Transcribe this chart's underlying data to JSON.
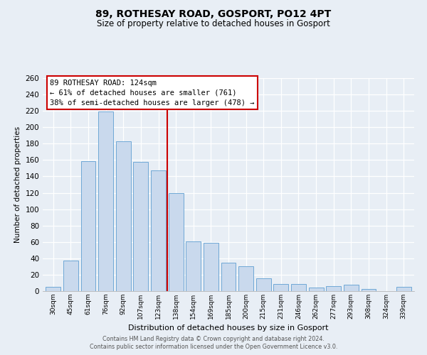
{
  "title": "89, ROTHESAY ROAD, GOSPORT, PO12 4PT",
  "subtitle": "Size of property relative to detached houses in Gosport",
  "xlabel": "Distribution of detached houses by size in Gosport",
  "ylabel": "Number of detached properties",
  "bar_labels": [
    "30sqm",
    "45sqm",
    "61sqm",
    "76sqm",
    "92sqm",
    "107sqm",
    "123sqm",
    "138sqm",
    "154sqm",
    "169sqm",
    "185sqm",
    "200sqm",
    "215sqm",
    "231sqm",
    "246sqm",
    "262sqm",
    "277sqm",
    "293sqm",
    "308sqm",
    "324sqm",
    "339sqm"
  ],
  "bar_values": [
    5,
    37,
    159,
    219,
    183,
    158,
    147,
    120,
    61,
    59,
    35,
    30,
    16,
    9,
    9,
    4,
    6,
    8,
    3,
    0,
    5
  ],
  "bar_color": "#c9d9ed",
  "bar_edgecolor": "#6fa8d6",
  "vline_x": 6.5,
  "vline_color": "#cc0000",
  "annotation_title": "89 ROTHESAY ROAD: 124sqm",
  "annotation_line1": "← 61% of detached houses are smaller (761)",
  "annotation_line2": "38% of semi-detached houses are larger (478) →",
  "annotation_box_edgecolor": "#cc0000",
  "annotation_box_facecolor": "#ffffff",
  "ylim": [
    0,
    260
  ],
  "yticks": [
    0,
    20,
    40,
    60,
    80,
    100,
    120,
    140,
    160,
    180,
    200,
    220,
    240,
    260
  ],
  "footer_line1": "Contains HM Land Registry data © Crown copyright and database right 2024.",
  "footer_line2": "Contains public sector information licensed under the Open Government Licence v3.0.",
  "bg_color": "#e8eef5"
}
